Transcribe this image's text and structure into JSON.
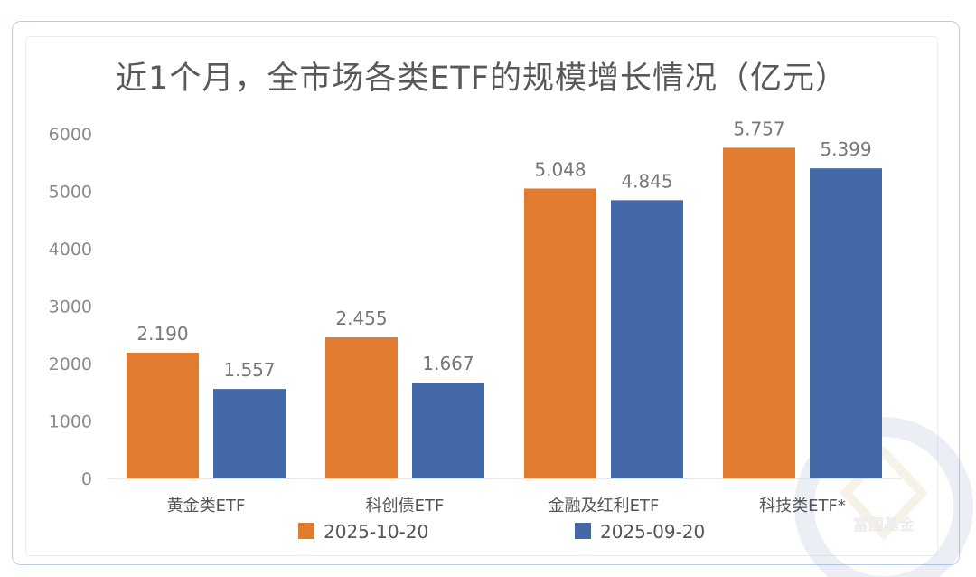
{
  "chart_data": {
    "type": "bar",
    "title": "近1个月，全市场各类ETF的规模增长情况（亿元）",
    "categories": [
      "黄金类ETF",
      "科创债ETF",
      "金融及红利ETF",
      "科技类ETF*"
    ],
    "series": [
      {
        "name": "2025-10-20",
        "values": [
          2190,
          2455,
          5048,
          5757
        ],
        "labels": [
          "2.190",
          "2.455",
          "5.048",
          "5.757"
        ],
        "color": "#e07b2f"
      },
      {
        "name": "2025-09-20",
        "values": [
          1557,
          1667,
          4845,
          5399
        ],
        "labels": [
          "1.557",
          "1.667",
          "4.845",
          "5.399"
        ],
        "color": "#4469a9"
      }
    ],
    "ylim": [
      0,
      6000
    ],
    "yticks": [
      0,
      1000,
      2000,
      3000,
      4000,
      5000,
      6000
    ],
    "grid": false,
    "legend_position": "bottom"
  },
  "watermark": {
    "text": "富国基金"
  }
}
